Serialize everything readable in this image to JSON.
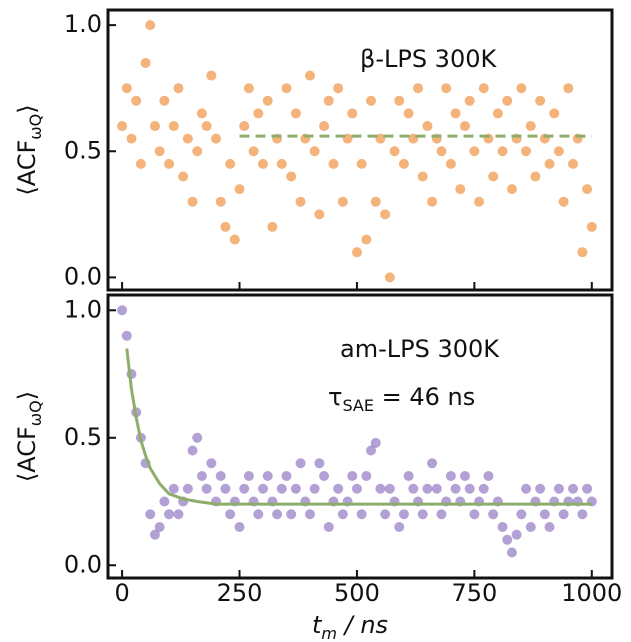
{
  "chart_data": [
    {
      "type": "scatter",
      "annotation": "β-LPS 300K",
      "ylabel": {
        "main": "⟨ACF",
        "sub": "ωQ",
        "end": "⟩"
      },
      "color": "#ee8a32",
      "x": [
        0,
        10,
        20,
        30,
        40,
        50,
        60,
        70,
        80,
        90,
        100,
        110,
        120,
        130,
        140,
        150,
        160,
        170,
        180,
        190,
        200,
        210,
        220,
        230,
        240,
        250,
        260,
        270,
        280,
        290,
        300,
        310,
        320,
        330,
        340,
        350,
        360,
        370,
        380,
        390,
        400,
        410,
        420,
        430,
        440,
        450,
        460,
        470,
        480,
        490,
        500,
        510,
        520,
        530,
        540,
        550,
        560,
        570,
        580,
        590,
        600,
        610,
        620,
        630,
        640,
        650,
        660,
        670,
        680,
        690,
        700,
        710,
        720,
        730,
        740,
        750,
        760,
        770,
        780,
        790,
        800,
        810,
        820,
        830,
        840,
        850,
        860,
        870,
        880,
        890,
        900,
        910,
        920,
        930,
        940,
        950,
        960,
        970,
        980,
        990,
        1000
      ],
      "values": [
        0.6,
        0.75,
        0.55,
        0.7,
        0.45,
        0.85,
        1.0,
        0.6,
        0.5,
        0.7,
        0.45,
        0.6,
        0.75,
        0.4,
        0.55,
        0.3,
        0.5,
        0.65,
        0.6,
        0.8,
        0.55,
        0.3,
        0.2,
        0.45,
        0.15,
        0.35,
        0.6,
        0.75,
        0.5,
        0.65,
        0.45,
        0.7,
        0.2,
        0.55,
        0.45,
        0.75,
        0.4,
        0.65,
        0.3,
        0.55,
        0.8,
        0.5,
        0.25,
        0.6,
        0.7,
        0.45,
        0.75,
        0.3,
        0.55,
        0.65,
        0.1,
        0.45,
        0.15,
        0.7,
        0.3,
        0.55,
        0.25,
        0.0,
        0.5,
        0.7,
        0.45,
        0.65,
        0.55,
        0.75,
        0.4,
        0.6,
        0.3,
        0.55,
        0.5,
        0.75,
        0.45,
        0.65,
        0.35,
        0.6,
        0.7,
        0.5,
        0.3,
        0.75,
        0.55,
        0.4,
        0.65,
        0.5,
        0.7,
        0.35,
        0.55,
        0.75,
        0.5,
        0.6,
        0.4,
        0.7,
        0.55,
        0.45,
        0.65,
        0.5,
        0.3,
        0.75,
        0.45,
        0.55,
        0.1,
        0.35,
        0.2
      ],
      "fit": {
        "x": [
          250,
          1000
        ],
        "values": [
          0.56,
          0.56
        ],
        "color": "#8fad6a",
        "dashed": true
      },
      "xlim": [
        -30,
        1043
      ],
      "ylim": [
        -0.05,
        1.06
      ],
      "xticks": [
        0,
        250,
        500,
        750,
        1000
      ],
      "show_xtick_labels": false,
      "yticks": [
        {
          "value": 0,
          "label": "0.0"
        },
        {
          "value": 0.5,
          "label": "0.5"
        },
        {
          "value": 1,
          "label": "1.0"
        }
      ]
    },
    {
      "type": "scatter",
      "annotation": "am-LPS 300K",
      "ylabel": {
        "main": "⟨ACF",
        "sub": "ωQ",
        "end": "⟩"
      },
      "fit_label": {
        "main": "τ",
        "sub": "SAE",
        "end": " = 46 ns"
      },
      "xlabel": {
        "main": "t",
        "sub": "m",
        "end": " / ns"
      },
      "color": "#8a6fc0",
      "x": [
        0,
        10,
        20,
        30,
        40,
        50,
        60,
        70,
        80,
        90,
        100,
        110,
        120,
        130,
        140,
        150,
        160,
        170,
        180,
        190,
        200,
        210,
        220,
        230,
        240,
        250,
        260,
        270,
        280,
        290,
        300,
        310,
        320,
        330,
        340,
        350,
        360,
        370,
        380,
        390,
        400,
        410,
        420,
        430,
        440,
        450,
        460,
        470,
        480,
        490,
        500,
        510,
        520,
        530,
        540,
        550,
        560,
        570,
        580,
        590,
        600,
        610,
        620,
        630,
        640,
        650,
        660,
        670,
        680,
        690,
        700,
        710,
        720,
        730,
        740,
        750,
        760,
        770,
        780,
        790,
        800,
        810,
        820,
        830,
        840,
        850,
        860,
        870,
        880,
        890,
        900,
        910,
        920,
        930,
        940,
        950,
        960,
        970,
        980,
        990,
        1000
      ],
      "values": [
        1.0,
        0.9,
        0.75,
        0.6,
        0.5,
        0.4,
        0.2,
        0.12,
        0.15,
        0.25,
        0.2,
        0.3,
        0.2,
        0.25,
        0.3,
        0.45,
        0.5,
        0.35,
        0.3,
        0.4,
        0.25,
        0.35,
        0.3,
        0.2,
        0.25,
        0.15,
        0.3,
        0.35,
        0.25,
        0.2,
        0.3,
        0.35,
        0.25,
        0.2,
        0.3,
        0.35,
        0.2,
        0.3,
        0.4,
        0.25,
        0.2,
        0.3,
        0.4,
        0.35,
        0.15,
        0.25,
        0.3,
        0.2,
        0.25,
        0.35,
        0.3,
        0.2,
        0.35,
        0.45,
        0.48,
        0.3,
        0.2,
        0.3,
        0.25,
        0.15,
        0.2,
        0.35,
        0.3,
        0.25,
        0.2,
        0.3,
        0.4,
        0.3,
        0.2,
        0.25,
        0.35,
        0.3,
        0.25,
        0.35,
        0.3,
        0.2,
        0.25,
        0.3,
        0.35,
        0.2,
        0.25,
        0.15,
        0.1,
        0.05,
        0.12,
        0.2,
        0.3,
        0.15,
        0.25,
        0.3,
        0.2,
        0.15,
        0.25,
        0.3,
        0.2,
        0.25,
        0.3,
        0.25,
        0.2,
        0.3,
        0.25
      ],
      "fit": {
        "x": [
          10,
          20,
          30,
          40,
          50,
          60,
          80,
          100,
          130,
          160,
          200,
          300,
          1000
        ],
        "values": [
          0.85,
          0.69,
          0.58,
          0.49,
          0.43,
          0.38,
          0.32,
          0.28,
          0.26,
          0.25,
          0.24,
          0.24,
          0.24
        ],
        "color": "#8fad6a",
        "dashed": false
      },
      "xlim": [
        -30,
        1043
      ],
      "ylim": [
        -0.05,
        1.06
      ],
      "xticks": [
        0,
        250,
        500,
        750,
        1000
      ],
      "show_xtick_labels": true,
      "yticks": [
        {
          "value": 0,
          "label": "0.0"
        },
        {
          "value": 0.5,
          "label": "0.5"
        },
        {
          "value": 1,
          "label": "1.0"
        }
      ]
    }
  ]
}
